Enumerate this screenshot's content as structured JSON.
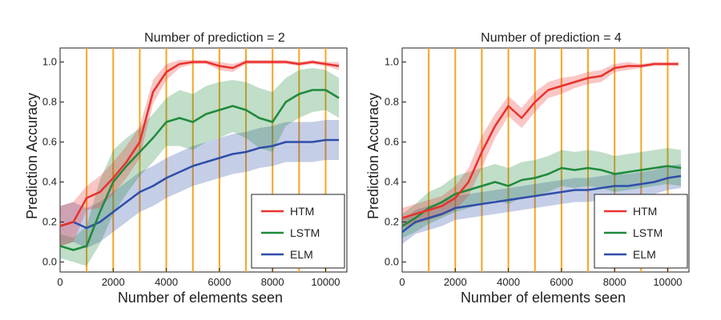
{
  "chart_data": [
    {
      "type": "line",
      "title": "Number of prediction = 2",
      "xlabel": "Number of elements seen",
      "ylabel": "Prediction Accuracy",
      "xlim": [
        0,
        10800
      ],
      "ylim": [
        -0.05,
        1.07
      ],
      "xticks": [
        0,
        2000,
        4000,
        6000,
        8000,
        10000
      ],
      "yticks": [
        "0.0",
        "0.2",
        "0.4",
        "0.6",
        "0.8",
        "1.0"
      ],
      "vlines": [
        1000,
        2000,
        3000,
        4000,
        5000,
        6000,
        7000,
        8000,
        9000,
        10000
      ],
      "vline_color": "#f5a623",
      "legend_position": "lower-right",
      "series": [
        {
          "name": "HTM",
          "color": "#e8322d",
          "x": [
            0,
            500,
            1000,
            1500,
            2000,
            2500,
            3000,
            3500,
            4000,
            4500,
            5000,
            5500,
            6000,
            6500,
            7000,
            7500,
            8000,
            8500,
            9000,
            9500,
            10000,
            10500
          ],
          "values": [
            0.18,
            0.2,
            0.32,
            0.35,
            0.42,
            0.5,
            0.6,
            0.85,
            0.95,
            0.99,
            1.0,
            1.0,
            0.98,
            0.97,
            1.0,
            1.0,
            1.0,
            1.0,
            0.99,
            1.0,
            0.99,
            0.98
          ],
          "band": [
            0.1,
            0.1,
            0.06,
            0.08,
            0.08,
            0.08,
            0.08,
            0.06,
            0.04,
            0.02,
            0.01,
            0.01,
            0.02,
            0.02,
            0.01,
            0.01,
            0.01,
            0.01,
            0.01,
            0.01,
            0.01,
            0.02
          ]
        },
        {
          "name": "LSTM",
          "color": "#1f8a3c",
          "x": [
            0,
            500,
            1000,
            1500,
            2000,
            2500,
            3000,
            3500,
            4000,
            4500,
            5000,
            5500,
            6000,
            6500,
            7000,
            7500,
            8000,
            8500,
            9000,
            9500,
            10000,
            10500
          ],
          "values": [
            0.08,
            0.06,
            0.08,
            0.25,
            0.4,
            0.48,
            0.55,
            0.62,
            0.7,
            0.72,
            0.7,
            0.74,
            0.76,
            0.78,
            0.76,
            0.72,
            0.7,
            0.8,
            0.84,
            0.86,
            0.86,
            0.82
          ],
          "band": [
            0.06,
            0.06,
            0.1,
            0.16,
            0.16,
            0.14,
            0.12,
            0.12,
            0.12,
            0.14,
            0.14,
            0.14,
            0.14,
            0.13,
            0.14,
            0.15,
            0.15,
            0.12,
            0.12,
            0.11,
            0.1,
            0.1
          ]
        },
        {
          "name": "ELM",
          "color": "#2e4ea8",
          "x": [
            0,
            500,
            1000,
            1500,
            2000,
            2500,
            3000,
            3500,
            4000,
            4500,
            5000,
            5500,
            6000,
            6500,
            7000,
            7500,
            8000,
            8500,
            9000,
            9500,
            10000,
            10500
          ],
          "values": [
            0.18,
            0.2,
            0.17,
            0.2,
            0.25,
            0.3,
            0.35,
            0.38,
            0.42,
            0.45,
            0.48,
            0.5,
            0.52,
            0.54,
            0.55,
            0.57,
            0.58,
            0.6,
            0.6,
            0.6,
            0.61,
            0.61
          ],
          "band": [
            0.1,
            0.1,
            0.1,
            0.1,
            0.1,
            0.1,
            0.1,
            0.1,
            0.1,
            0.1,
            0.1,
            0.1,
            0.1,
            0.1,
            0.1,
            0.1,
            0.1,
            0.1,
            0.1,
            0.1,
            0.1,
            0.1
          ]
        }
      ]
    },
    {
      "type": "line",
      "title": "Number of prediction = 4",
      "xlabel": "Number of elements seen",
      "ylabel": "Prediction Accuracy",
      "xlim": [
        0,
        10800
      ],
      "ylim": [
        -0.05,
        1.07
      ],
      "xticks": [
        0,
        2000,
        4000,
        6000,
        8000,
        10000
      ],
      "yticks": [
        "0.0",
        "0.2",
        "0.4",
        "0.6",
        "0.8",
        "1.0"
      ],
      "vlines": [
        1000,
        2000,
        3000,
        4000,
        5000,
        6000,
        7000,
        8000,
        9000,
        10000
      ],
      "vline_color": "#f5a623",
      "legend_position": "lower-right",
      "series": [
        {
          "name": "HTM",
          "color": "#e8322d",
          "x": [
            0,
            500,
            1000,
            1500,
            2000,
            2500,
            3000,
            3500,
            4000,
            4500,
            5000,
            5500,
            6000,
            6500,
            7000,
            7500,
            8000,
            8500,
            9000,
            9500,
            10000,
            10400
          ],
          "values": [
            0.22,
            0.24,
            0.26,
            0.28,
            0.32,
            0.4,
            0.55,
            0.68,
            0.78,
            0.72,
            0.8,
            0.86,
            0.88,
            0.9,
            0.92,
            0.93,
            0.97,
            0.98,
            0.98,
            0.99,
            0.99,
            0.99
          ],
          "band": [
            0.05,
            0.05,
            0.05,
            0.05,
            0.06,
            0.07,
            0.08,
            0.06,
            0.05,
            0.05,
            0.05,
            0.04,
            0.04,
            0.03,
            0.03,
            0.03,
            0.02,
            0.02,
            0.01,
            0.01,
            0.01,
            0.01
          ]
        },
        {
          "name": "LSTM",
          "color": "#1f8a3c",
          "x": [
            0,
            500,
            1000,
            1500,
            2000,
            2500,
            3000,
            3500,
            4000,
            4500,
            5000,
            5500,
            6000,
            6500,
            7000,
            7500,
            8000,
            8500,
            9000,
            9500,
            10000,
            10500
          ],
          "values": [
            0.18,
            0.22,
            0.27,
            0.3,
            0.34,
            0.36,
            0.38,
            0.4,
            0.38,
            0.41,
            0.42,
            0.44,
            0.47,
            0.46,
            0.47,
            0.46,
            0.44,
            0.45,
            0.46,
            0.47,
            0.48,
            0.47
          ],
          "band": [
            0.06,
            0.07,
            0.08,
            0.08,
            0.09,
            0.09,
            0.09,
            0.09,
            0.09,
            0.09,
            0.09,
            0.09,
            0.09,
            0.09,
            0.09,
            0.09,
            0.09,
            0.09,
            0.09,
            0.09,
            0.09,
            0.09
          ]
        },
        {
          "name": "ELM",
          "color": "#2e4ea8",
          "x": [
            0,
            500,
            1000,
            1500,
            2000,
            2500,
            3000,
            3500,
            4000,
            4500,
            5000,
            5500,
            6000,
            6500,
            7000,
            7500,
            8000,
            8500,
            9000,
            9500,
            10000,
            10500
          ],
          "values": [
            0.15,
            0.2,
            0.22,
            0.24,
            0.27,
            0.28,
            0.29,
            0.3,
            0.31,
            0.32,
            0.33,
            0.34,
            0.35,
            0.36,
            0.36,
            0.37,
            0.38,
            0.38,
            0.39,
            0.4,
            0.42,
            0.43
          ],
          "band": [
            0.06,
            0.06,
            0.06,
            0.06,
            0.06,
            0.06,
            0.06,
            0.06,
            0.06,
            0.06,
            0.06,
            0.06,
            0.06,
            0.06,
            0.06,
            0.06,
            0.06,
            0.06,
            0.06,
            0.06,
            0.06,
            0.06
          ]
        }
      ]
    }
  ]
}
